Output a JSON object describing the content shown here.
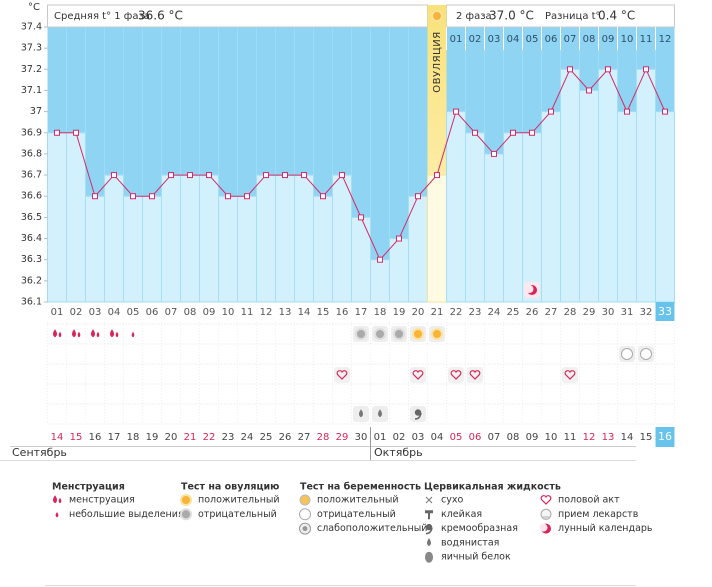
{
  "header": {
    "phase1_label": "Средняя t° 1 фаза",
    "phase1_value": "36.6 °C",
    "phase2_label": "2 фаза",
    "phase2_value": "37.0 °C",
    "diff_label": "Разница t°",
    "diff_value": "0.4 °C"
  },
  "chart_data": {
    "type": "line",
    "ylabel": "°C",
    "annotation": "ОВУЛЯЦИЯ",
    "categories": [
      "01",
      "02",
      "03",
      "04",
      "05",
      "06",
      "07",
      "08",
      "09",
      "10",
      "11",
      "12",
      "13",
      "14",
      "15",
      "16",
      "17",
      "18",
      "19",
      "20",
      "21",
      "22",
      "23",
      "24",
      "25",
      "26",
      "27",
      "28",
      "29",
      "30",
      "31",
      "32",
      "33"
    ],
    "values": [
      36.9,
      36.9,
      36.6,
      36.7,
      36.6,
      36.6,
      36.7,
      36.7,
      36.7,
      36.6,
      36.6,
      36.7,
      36.7,
      36.7,
      36.6,
      36.7,
      36.5,
      36.3,
      36.4,
      36.6,
      36.7,
      37.0,
      36.9,
      36.8,
      36.9,
      36.9,
      37.0,
      37.2,
      37.1,
      37.2,
      37.0,
      37.2,
      37.0
    ],
    "color": "#d42a68",
    "phase2_days": [
      "01",
      "02",
      "03",
      "04",
      "05",
      "06",
      "07",
      "08",
      "09",
      "10",
      "11",
      "12"
    ],
    "ylim": [
      36.1,
      37.4
    ],
    "yticks": [
      36.1,
      36.2,
      36.3,
      36.4,
      36.5,
      36.6,
      36.7,
      36.8,
      36.9,
      37,
      37.1,
      37.2,
      37.3,
      37.4
    ]
  },
  "calendar": {
    "dates": [
      "14",
      "15",
      "16",
      "17",
      "18",
      "19",
      "20",
      "21",
      "22",
      "23",
      "24",
      "25",
      "26",
      "27",
      "28",
      "29",
      "30",
      "01",
      "02",
      "03",
      "04",
      "05",
      "06",
      "07",
      "08",
      "09",
      "10",
      "11",
      "12",
      "13",
      "14",
      "15",
      "16"
    ],
    "date_colors": [
      "#d9245a",
      "#d9245a",
      "#444",
      "#444",
      "#444",
      "#444",
      "#444",
      "#d9245a",
      "#d9245a",
      "#444",
      "#444",
      "#444",
      "#444",
      "#444",
      "#d9245a",
      "#d9245a",
      "#444",
      "#444",
      "#444",
      "#444",
      "#444",
      "#d9245a",
      "#d9245a",
      "#444",
      "#444",
      "#444",
      "#444",
      "#444",
      "#d9245a",
      "#d9245a",
      "#444",
      "#444",
      "#fff"
    ],
    "months": [
      "Сентябрь",
      "Октябрь"
    ]
  },
  "legend": [
    {
      "title": "Менструация",
      "items": [
        "менструация",
        "небольшие выделения"
      ]
    },
    {
      "title": "Тест на овуляцию",
      "items": [
        "положительный",
        "отрицательный"
      ]
    },
    {
      "title": "Тест на беременность",
      "items": [
        "положительный",
        "отрицательный",
        "слабоположительный"
      ]
    },
    {
      "title": "Цервикальная жидкость",
      "items": [
        "сухо",
        "клейкая",
        "кремообразная",
        "водянистая",
        "яичный белок"
      ]
    },
    {
      "items": [
        "половой акт",
        "прием лекарств",
        "лунный календарь"
      ]
    }
  ]
}
